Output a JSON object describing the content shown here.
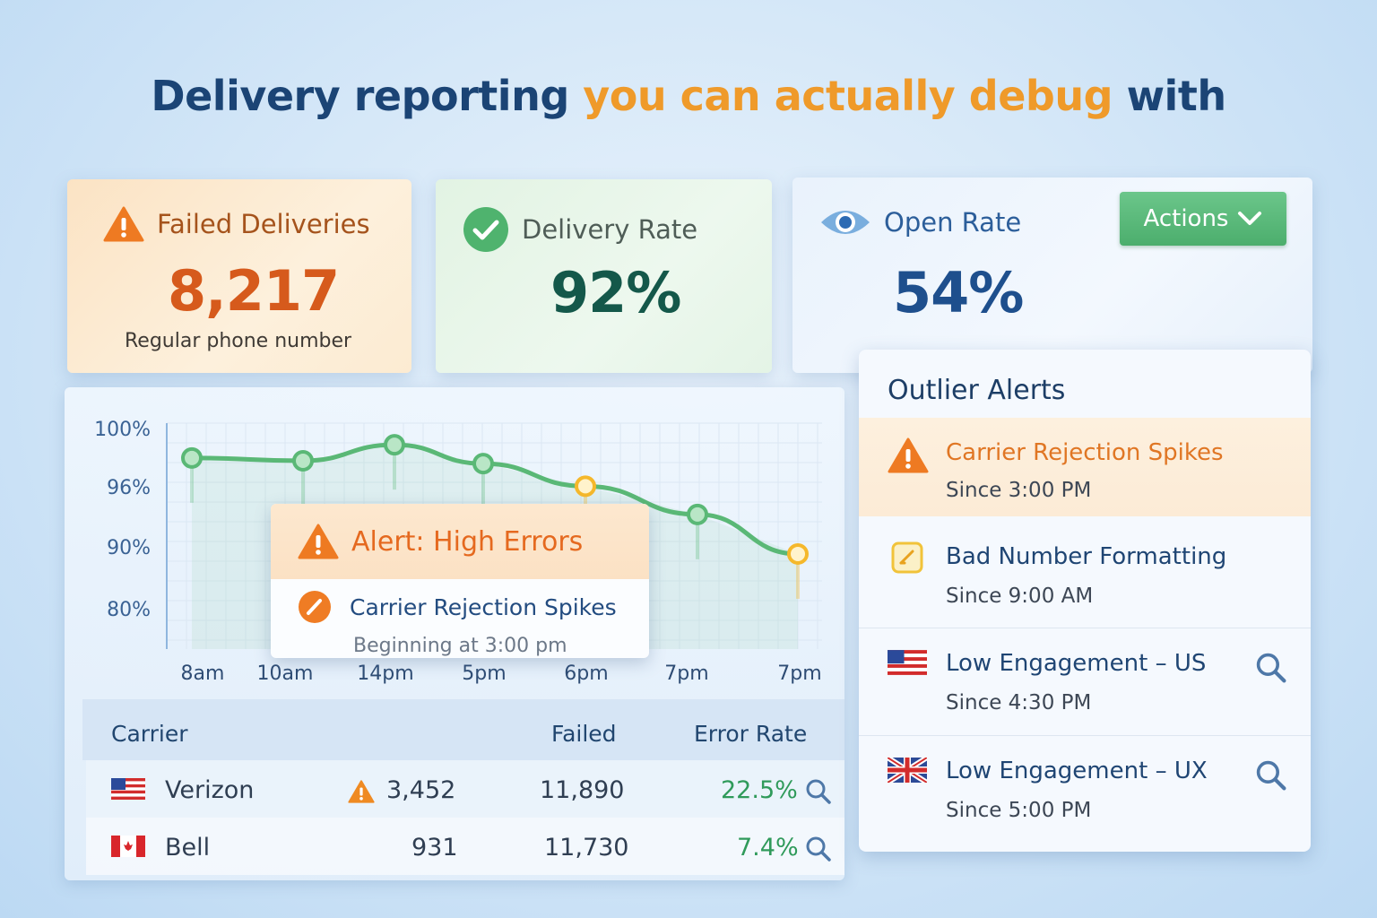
{
  "headline": {
    "part1": "Delivery reporting",
    "accent": "you can actually debug",
    "part2": "with"
  },
  "kpis": {
    "failed": {
      "label": "Failed Deliveries",
      "value": "8,217",
      "sub": "Regular phone number",
      "icon": "warning-icon"
    },
    "delivery": {
      "label": "Delivery Rate",
      "value": "92%",
      "icon": "check-circle-icon"
    },
    "open": {
      "label": "Open Rate",
      "value": "54%",
      "icon": "eye-icon"
    }
  },
  "actions_button": {
    "label": "Actions",
    "icon": "chevron-down-icon"
  },
  "chart_data": {
    "type": "line",
    "title": "",
    "y_tick_labels": [
      "100%",
      "96%",
      "90%",
      "80%"
    ],
    "x_tick_labels": [
      "8am",
      "10am",
      "14pm",
      "5pm",
      "6pm",
      "7pm",
      "7pm"
    ],
    "series": [
      {
        "values": [
          96.3,
          96.0,
          97.7,
          95.7,
          93.3,
          90.3,
          86.1
        ]
      }
    ],
    "highlighted_points": [
      4,
      6
    ],
    "colors": {
      "line": "#5ab876",
      "point": "#5ab876",
      "alert_point": "#f5b82b"
    },
    "grid": true
  },
  "chart_alert": {
    "title": "Alert: High Errors",
    "item": "Carrier Rejection Spikes",
    "sub": "Beginning at 3:00 pm"
  },
  "table": {
    "headers": {
      "carrier": "Carrier",
      "failed": "Failed",
      "error_rate": "Error Rate"
    },
    "rows": [
      {
        "carrier": "Verizon",
        "flag": "us-flag-icon",
        "warn": true,
        "count": "3,452",
        "failed": "11,890",
        "error_rate": "22.5%"
      },
      {
        "carrier": "Bell",
        "flag": "ca-flag-icon",
        "warn": false,
        "count": "931",
        "failed": "11,730",
        "error_rate": "7.4%"
      }
    ]
  },
  "outlier_alerts": {
    "title": "Outlier Alerts",
    "items": [
      {
        "title": "Carrier Rejection Spikes",
        "since": "Since 3:00 PM",
        "icon": "warning-icon"
      },
      {
        "title": "Bad Number Formatting",
        "since": "Since 9:00 AM",
        "icon": "edit-icon"
      },
      {
        "title": "Low Engagement – US",
        "since": "Since 4:30 PM",
        "icon": "us-flag-icon"
      },
      {
        "title": "Low Engagement – UX",
        "since": "Since 5:00 PM",
        "icon": "uk-flag-icon"
      }
    ]
  },
  "colors": {
    "accent_orange": "#ef9a2a",
    "success_green": "#4cae6d",
    "navy": "#1b4475"
  }
}
